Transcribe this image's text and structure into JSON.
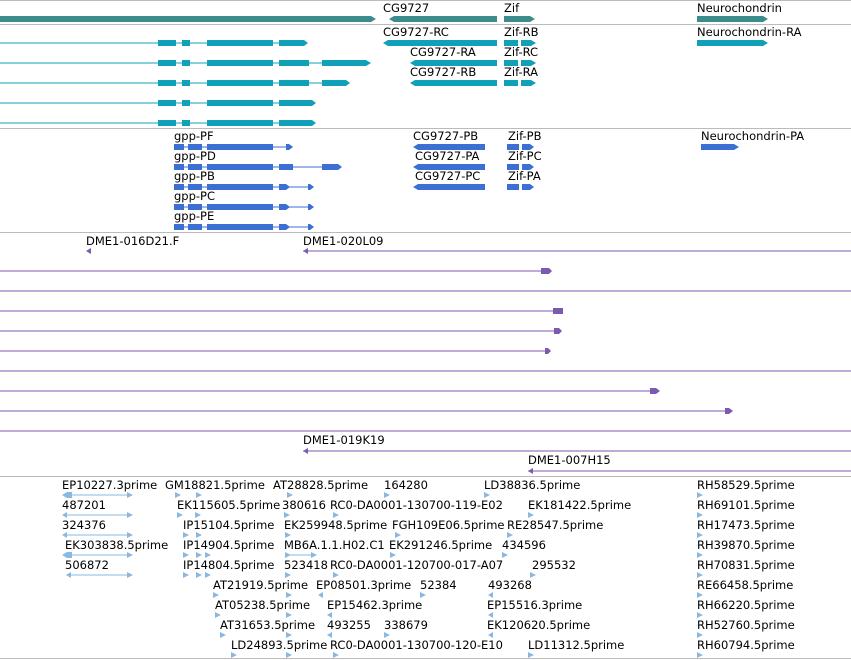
{
  "colors": {
    "gene": "#3c8c8c",
    "transcript": "#10a0b8",
    "protein": "#3b6fd4",
    "clone": "#7b5ab0",
    "est": "#8ab8e0",
    "divider": "#bbbbbb"
  },
  "tracks": {
    "genes": [
      {
        "id": "g-left",
        "label": ""
      },
      {
        "id": "g-cg9727",
        "label": "CG9727"
      },
      {
        "id": "g-zif",
        "label": "Zif"
      },
      {
        "id": "g-neuro",
        "label": "Neurochondrin"
      }
    ],
    "transcript_labels": [
      "CG9727-RC",
      "CG9727-RA",
      "CG9727-RB",
      "Zif-RB",
      "Zif-RC",
      "Zif-RA",
      "Neurochondrin-RA"
    ],
    "protein_labels": [
      "gpp-PF",
      "gpp-PD",
      "gpp-PB",
      "gpp-PC",
      "gpp-PE",
      "CG9727-PB",
      "CG9727-PA",
      "CG9727-PC",
      "Zif-PB",
      "Zif-PC",
      "Zif-PA",
      "Neurochondrin-PA"
    ],
    "clone_labels": [
      "DME1-016D21.F",
      "DME1-020L09",
      "DME1-019K19",
      "DME1-007H15"
    ],
    "est_labels": [
      "EP10227.3prime",
      "GM18821.5prime",
      "AT28828.5prime",
      "164280",
      "LD38836.5prime",
      "RH58529.5prime",
      "487201",
      "EK115605.5prime",
      "380616",
      "RC0-DA0001-130700-119-E02",
      "EK181422.5prime",
      "RH69101.5prime",
      "324376",
      "IP15104.5prime",
      "EK259948.5prime",
      "FGH109E06.5prime",
      "RE28547.5prime",
      "RH17473.5prime",
      "EK303838.5prime",
      "IP14904.5prime",
      "MB6A.1.1.H02.C1",
      "EK291246.5prime",
      "434596",
      "RH39870.5prime",
      "506872",
      "IP14804.5prime",
      "523418",
      "RC0-DA0001-120700-017-A07",
      "295532",
      "RH70831.5prime",
      "AT21919.5prime",
      "EP08501.3prime",
      "52384",
      "493268",
      "RE66458.5prime",
      "AT05238.5prime",
      "EP15462.3prime",
      "EP15516.3prime",
      "RH66220.5prime",
      "AT31653.5prime",
      "493255",
      "338679",
      "EK120620.5prime",
      "RH52760.5prime",
      "LD24893.5prime",
      "RC0-DA0001-130700-120-E10",
      "LD11312.5prime",
      "RH60794.5prime"
    ]
  }
}
